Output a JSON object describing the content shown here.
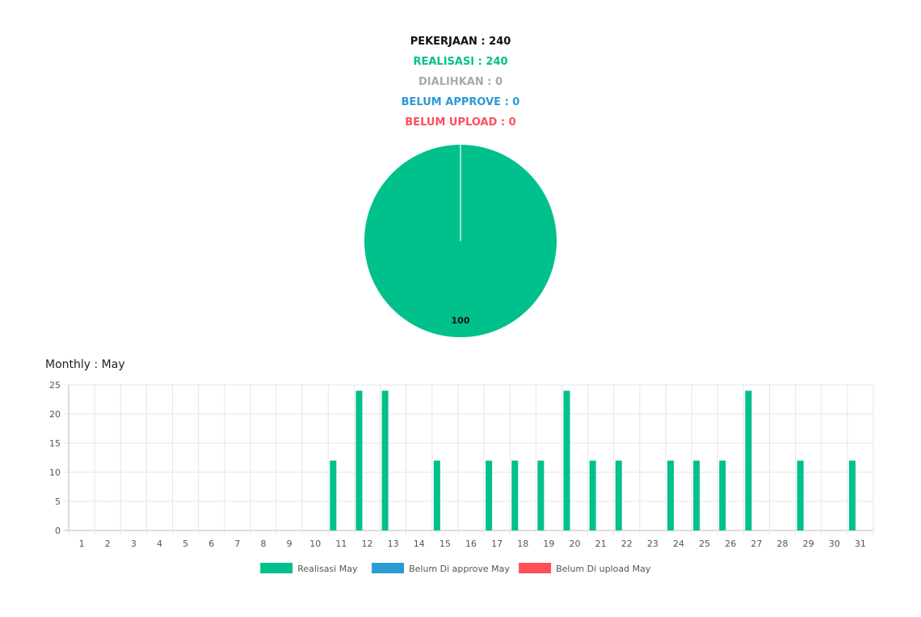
{
  "summary": {
    "pekerjaan": "PEKERJAAN : 240",
    "realisasi": "REALISASI : 240",
    "dialihkan": "DIALIHKAN : 0",
    "belum_approve": "BELUM APPROVE : 0",
    "belum_upload": "BELUM UPLOAD : 0"
  },
  "monthly_title": "Monthly : May",
  "chart_data": [
    {
      "type": "pie",
      "slices": [
        {
          "label": "Realisasi",
          "value": 100,
          "color": "#00c08b"
        },
        {
          "label": "Dialihkan",
          "value": 0,
          "color": "#aaaaaa"
        },
        {
          "label": "Belum Approve",
          "value": 0,
          "color": "#2d9ad6"
        },
        {
          "label": "Belum Upload",
          "value": 0,
          "color": "#ff4f5a"
        }
      ],
      "data_label": "100"
    },
    {
      "type": "bar",
      "title": "Monthly : May",
      "categories": [
        "1",
        "2",
        "3",
        "4",
        "5",
        "6",
        "7",
        "8",
        "9",
        "10",
        "11",
        "12",
        "13",
        "14",
        "15",
        "16",
        "17",
        "18",
        "19",
        "20",
        "21",
        "22",
        "23",
        "24",
        "25",
        "26",
        "27",
        "28",
        "29",
        "30",
        "31"
      ],
      "ylim": [
        0,
        25
      ],
      "yticks": [
        0,
        5,
        10,
        15,
        20,
        25
      ],
      "grid": true,
      "legend_position": "bottom",
      "series": [
        {
          "name": "Realisasi May",
          "color": "#00c08b",
          "values": [
            0,
            0,
            0,
            0,
            0,
            0,
            0,
            0,
            0,
            0,
            12,
            24,
            24,
            0,
            12,
            0,
            12,
            12,
            12,
            24,
            12,
            12,
            0,
            12,
            12,
            12,
            24,
            0,
            12,
            0,
            12
          ]
        },
        {
          "name": "Belum Di approve May",
          "color": "#2d9ad6",
          "values": [
            0,
            0,
            0,
            0,
            0,
            0,
            0,
            0,
            0,
            0,
            0,
            0,
            0,
            0,
            0,
            0,
            0,
            0,
            0,
            0,
            0,
            0,
            0,
            0,
            0,
            0,
            0,
            0,
            0,
            0,
            0
          ]
        },
        {
          "name": "Belum Di upload May",
          "color": "#ff4f5a",
          "values": [
            0,
            0,
            0,
            0,
            0,
            0,
            0,
            0,
            0,
            0,
            0,
            0,
            0,
            0,
            0,
            0,
            0,
            0,
            0,
            0,
            0,
            0,
            0,
            0,
            0,
            0,
            0,
            0,
            0,
            0,
            0
          ]
        }
      ]
    }
  ]
}
